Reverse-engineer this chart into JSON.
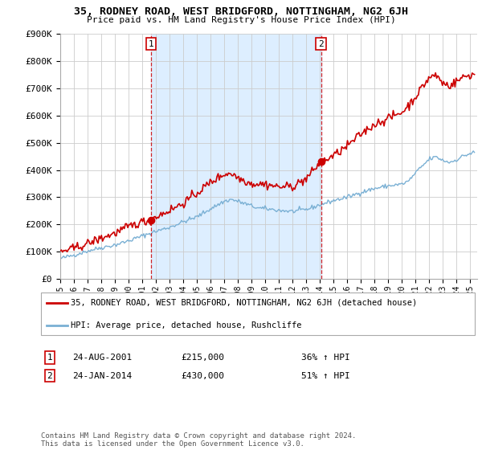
{
  "title": "35, RODNEY ROAD, WEST BRIDGFORD, NOTTINGHAM, NG2 6JH",
  "subtitle": "Price paid vs. HM Land Registry's House Price Index (HPI)",
  "ylim": [
    0,
    900000
  ],
  "yticks": [
    0,
    100000,
    200000,
    300000,
    400000,
    500000,
    600000,
    700000,
    800000,
    900000
  ],
  "ytick_labels": [
    "£0",
    "£100K",
    "£200K",
    "£300K",
    "£400K",
    "£500K",
    "£600K",
    "£700K",
    "£800K",
    "£900K"
  ],
  "xlim_start": 1995.0,
  "xlim_end": 2025.5,
  "property_color": "#cc0000",
  "hpi_color": "#7ab0d4",
  "shade_color": "#ddeeff",
  "sale1_date": 2001.65,
  "sale1_price": 215000,
  "sale2_date": 2014.07,
  "sale2_price": 430000,
  "legend_property": "35, RODNEY ROAD, WEST BRIDGFORD, NOTTINGHAM, NG2 6JH (detached house)",
  "legend_hpi": "HPI: Average price, detached house, Rushcliffe",
  "footer": "Contains HM Land Registry data © Crown copyright and database right 2024.\nThis data is licensed under the Open Government Licence v3.0.",
  "background_color": "#ffffff",
  "grid_color": "#cccccc"
}
